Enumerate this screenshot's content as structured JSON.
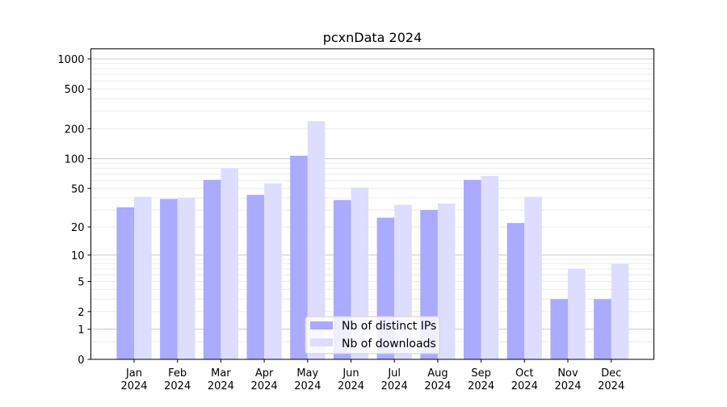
{
  "chart_data": {
    "type": "bar",
    "title": "pcxnData 2024",
    "xlabel": "",
    "ylabel": "",
    "yscale": "log(x+1)",
    "ylim": [
      0,
      1300
    ],
    "yticks": [
      0,
      1,
      2,
      5,
      10,
      20,
      50,
      100,
      200,
      500,
      1000
    ],
    "ytick_labels": [
      "0",
      "1",
      "2",
      "5",
      "10",
      "20",
      "50",
      "100",
      "200",
      "500",
      "1000"
    ],
    "categories": [
      [
        "Jan",
        "2024"
      ],
      [
        "Feb",
        "2024"
      ],
      [
        "Mar",
        "2024"
      ],
      [
        "Apr",
        "2024"
      ],
      [
        "May",
        "2024"
      ],
      [
        "Jun",
        "2024"
      ],
      [
        "Jul",
        "2024"
      ],
      [
        "Aug",
        "2024"
      ],
      [
        "Sep",
        "2024"
      ],
      [
        "Oct",
        "2024"
      ],
      [
        "Nov",
        "2024"
      ],
      [
        "Dec",
        "2024"
      ]
    ],
    "series": [
      {
        "name": "Nb of distinct IPs",
        "color": "#aaaaff",
        "values": [
          32,
          39,
          61,
          43,
          107,
          38,
          25,
          30,
          61,
          22,
          3,
          3
        ]
      },
      {
        "name": "Nb of downloads",
        "color": "#ddddff",
        "values": [
          41,
          40,
          80,
          56,
          238,
          51,
          34,
          35,
          67,
          41,
          7,
          8
        ]
      }
    ],
    "grid": true,
    "legend_position": "lower-center"
  }
}
